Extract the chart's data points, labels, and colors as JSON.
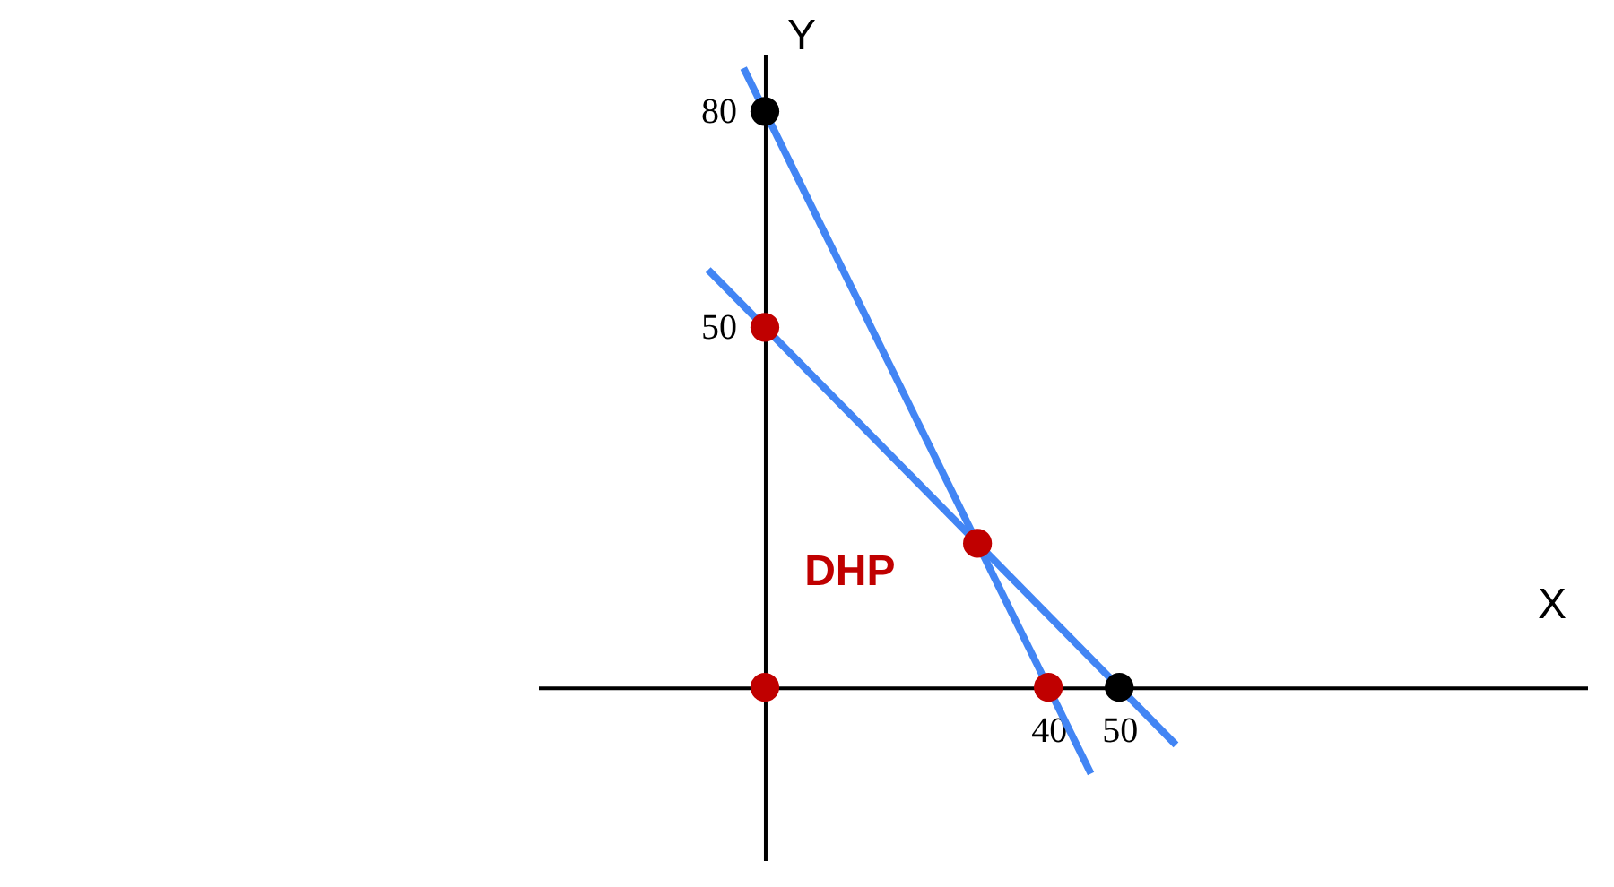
{
  "chart_data": {
    "type": "line",
    "xlabel": "X",
    "ylabel": "Y",
    "xlim": [
      -32,
      116
    ],
    "ylim": [
      -24,
      88
    ],
    "xticks": [
      40,
      50
    ],
    "yticks": [
      50,
      80
    ],
    "grid": false,
    "legend": false,
    "annotations": [
      "DHP"
    ],
    "series": [
      {
        "color": "#4285f4",
        "x": [
          -3,
          46
        ],
        "values": [
          86,
          -12
        ]
      },
      {
        "color": "#4285f4",
        "x": [
          -8,
          58
        ],
        "values": [
          58,
          -8
        ]
      },
      {
        "type": "scatter",
        "marker": "circle",
        "colors": [
          "#c00000",
          "#c00000",
          "#c00000",
          "#c00000",
          "#000000",
          "#000000"
        ],
        "x": [
          0,
          30,
          0,
          40,
          0,
          50
        ],
        "values": [
          50,
          20,
          0,
          0,
          80,
          0
        ]
      }
    ]
  }
}
